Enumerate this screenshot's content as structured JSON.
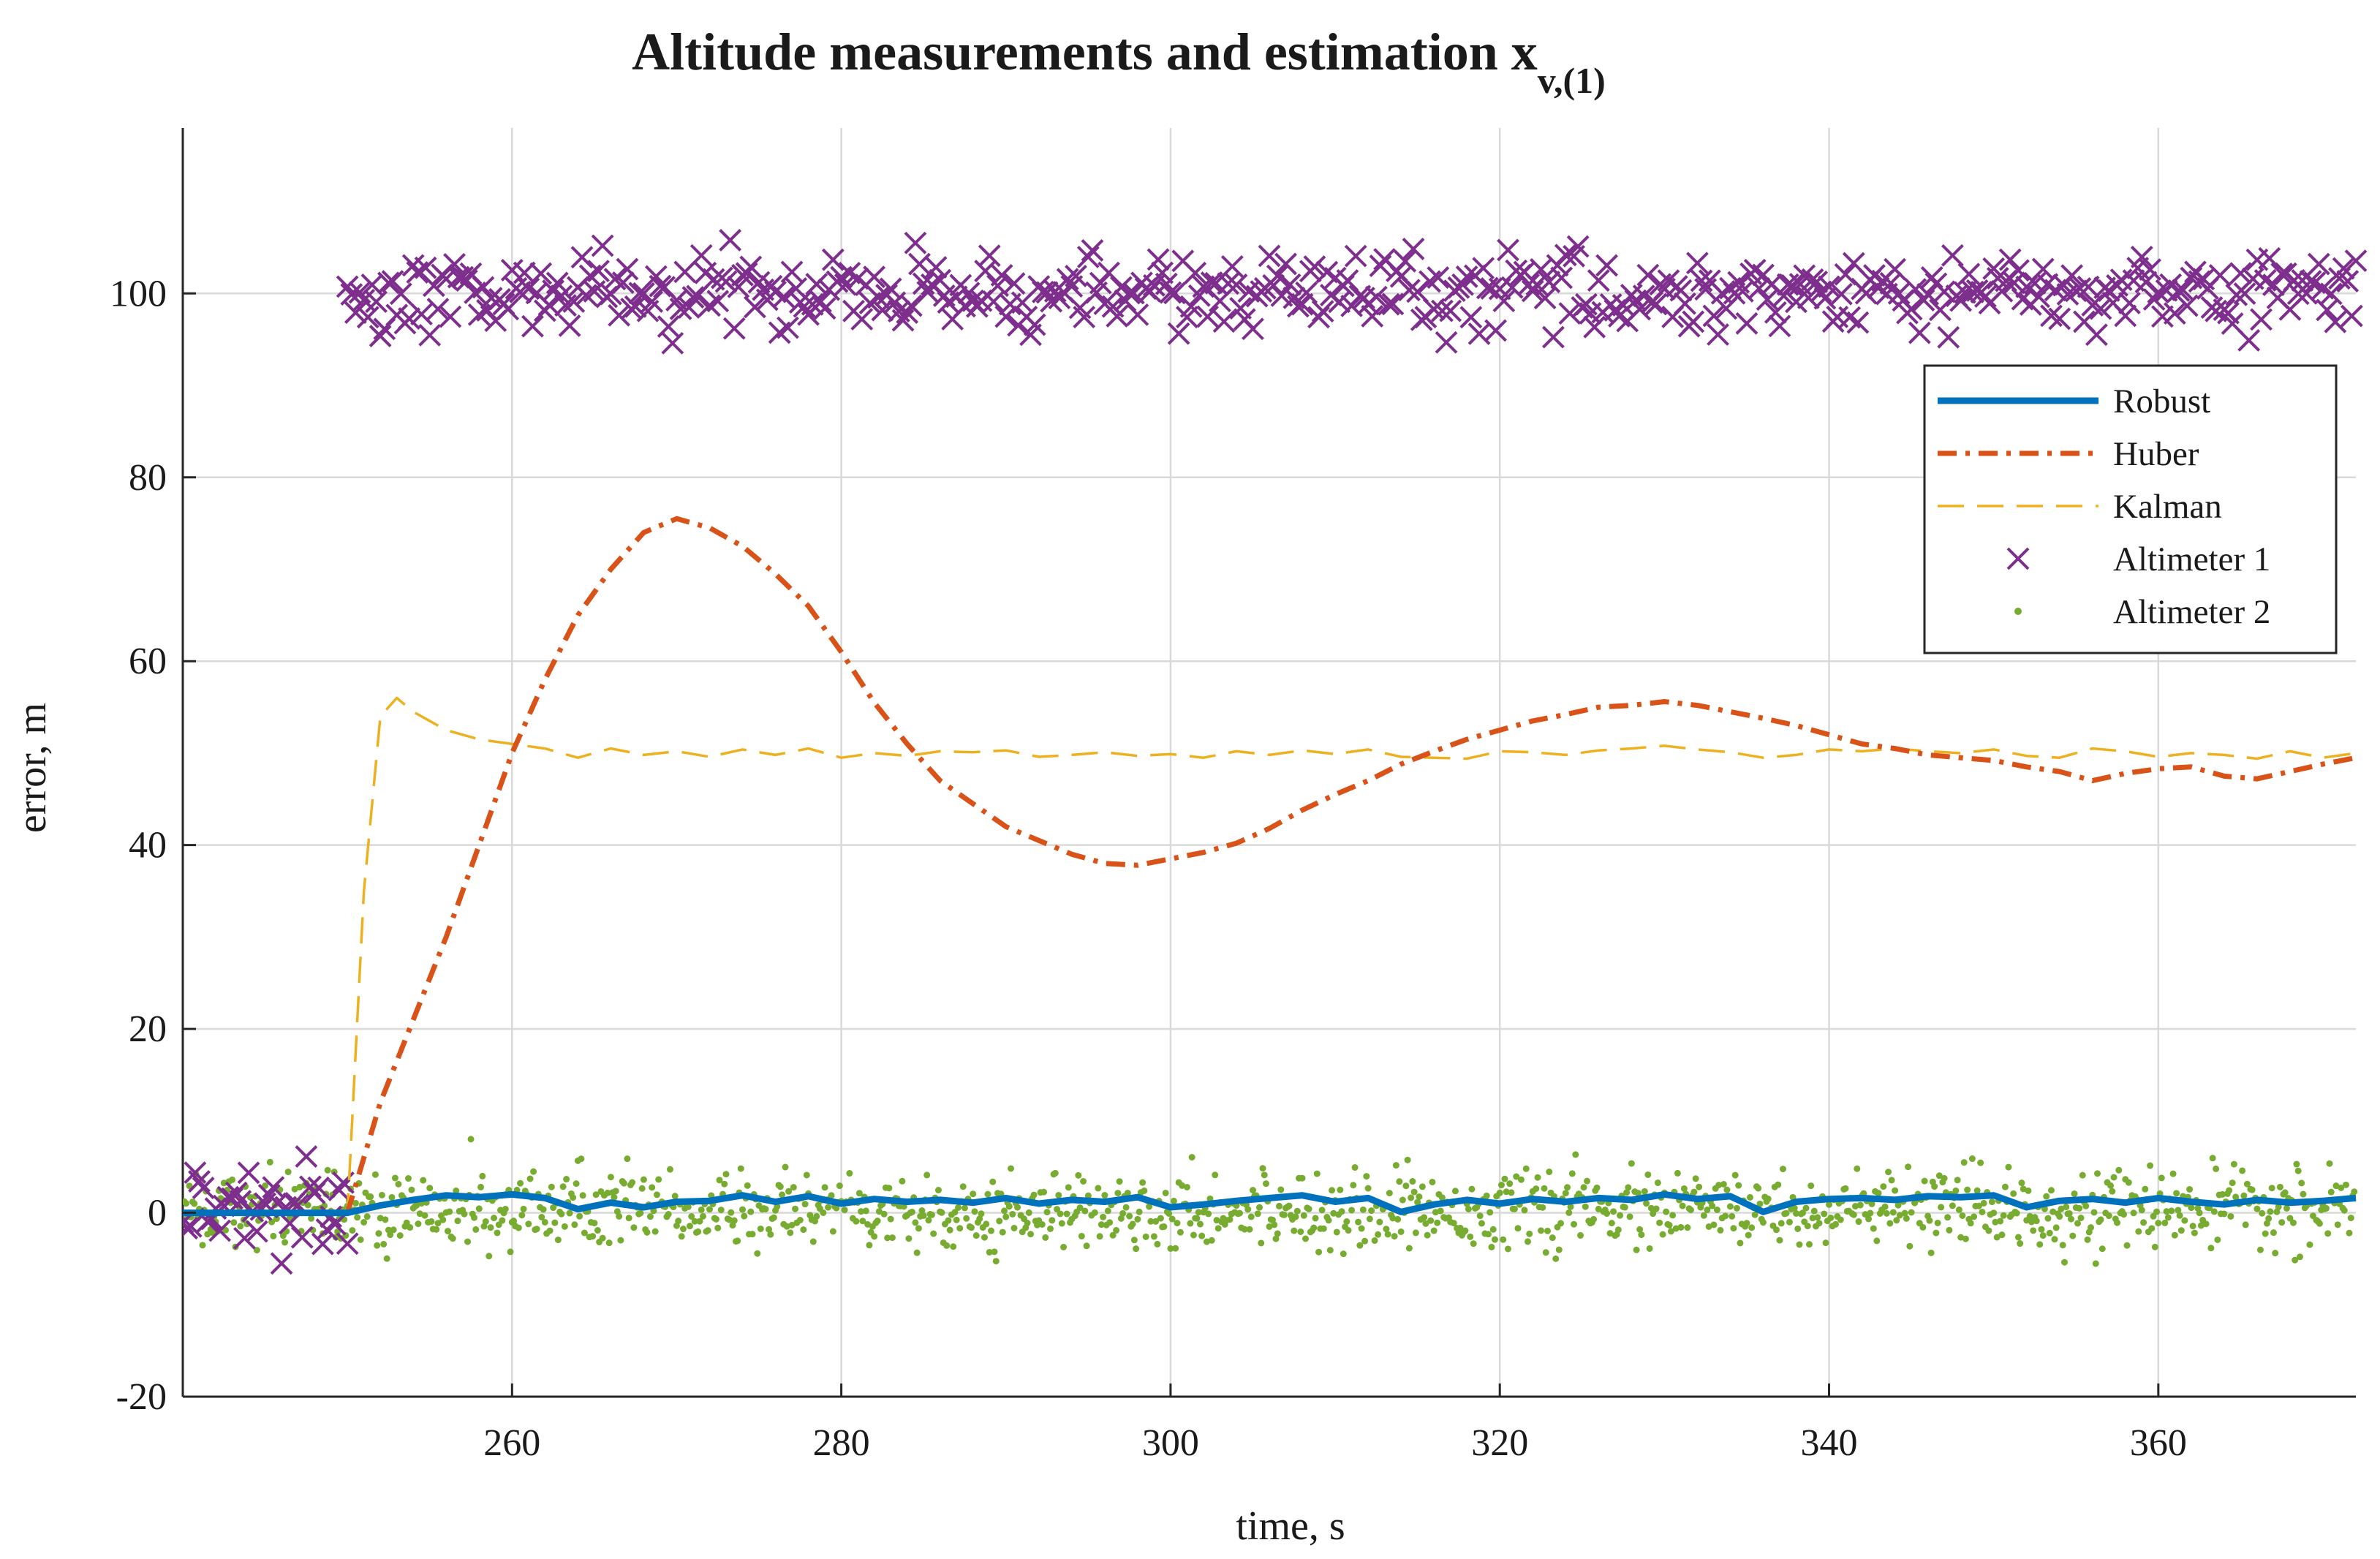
{
  "chart_data": {
    "type": "line",
    "title": "Altitude measurements and estimation x",
    "title_subscript": "v,(1)",
    "xlabel": "time, s",
    "ylabel": "error, m",
    "xlim": [
      240,
      372
    ],
    "ylim": [
      -20,
      118
    ],
    "xticks": [
      260,
      280,
      300,
      320,
      340,
      360
    ],
    "yticks": [
      -20,
      0,
      20,
      40,
      60,
      80,
      100
    ],
    "grid": true,
    "legend_position": "top-right",
    "series": [
      {
        "name": "Robust",
        "color": "#0072BD",
        "style": "solid",
        "x": [
          240,
          244,
          248,
          250,
          252,
          254,
          256,
          258,
          260,
          262,
          264,
          266,
          268,
          270,
          272,
          274,
          276,
          278,
          280,
          282,
          284,
          286,
          288,
          290,
          292,
          294,
          296,
          298,
          300,
          302,
          304,
          306,
          308,
          310,
          312,
          314,
          316,
          318,
          320,
          322,
          324,
          326,
          328,
          330,
          332,
          334,
          336,
          338,
          340,
          342,
          344,
          346,
          348,
          350,
          352,
          354,
          356,
          358,
          360,
          362,
          364,
          366,
          368,
          370,
          372
        ],
        "values": [
          0,
          0,
          0,
          0,
          0.8,
          1.4,
          1.9,
          1.7,
          2.0,
          1.6,
          0.4,
          1.1,
          0.6,
          1.2,
          1.3,
          1.9,
          1.2,
          1.8,
          1.0,
          1.5,
          1.2,
          1.4,
          1.1,
          1.6,
          1.0,
          1.4,
          1.2,
          1.7,
          0.6,
          0.9,
          1.3,
          1.6,
          1.9,
          1.2,
          1.6,
          0.1,
          0.9,
          1.4,
          1.0,
          1.5,
          1.2,
          1.6,
          1.4,
          2.0,
          1.5,
          1.8,
          0.1,
          1.2,
          1.5,
          1.6,
          1.4,
          1.8,
          1.7,
          1.9,
          0.6,
          1.3,
          1.5,
          1.1,
          1.6,
          1.2,
          0.9,
          1.4,
          1.1,
          1.3,
          1.6
        ]
      },
      {
        "name": "Huber",
        "color": "#D95319",
        "style": "dashdot",
        "x": [
          240,
          244,
          248,
          250,
          252,
          254,
          256,
          258,
          260,
          262,
          264,
          266,
          268,
          270,
          272,
          274,
          276,
          278,
          280,
          282,
          284,
          286,
          288,
          290,
          292,
          294,
          296,
          298,
          300,
          302,
          304,
          306,
          308,
          310,
          312,
          314,
          316,
          318,
          320,
          322,
          324,
          326,
          328,
          330,
          332,
          334,
          336,
          338,
          340,
          342,
          344,
          346,
          348,
          350,
          352,
          354,
          356,
          358,
          360,
          362,
          364,
          366,
          368,
          370,
          372
        ],
        "values": [
          0,
          0,
          0,
          0,
          12,
          21,
          30,
          40,
          50,
          58,
          65,
          70,
          74,
          75.5,
          74.5,
          72.5,
          69.5,
          66,
          61,
          55.5,
          51,
          47,
          44.5,
          42,
          40.5,
          39,
          38,
          37.8,
          38.5,
          39.2,
          40.2,
          41.8,
          43.8,
          45.5,
          47,
          48.8,
          50.2,
          51.5,
          52.5,
          53.5,
          54.2,
          55,
          55.2,
          55.6,
          55.2,
          54.5,
          53.8,
          53,
          52,
          51,
          50.5,
          49.8,
          49.5,
          49.2,
          48.5,
          48,
          47,
          47.8,
          48.3,
          48.5,
          47.5,
          47.2,
          48,
          48.8,
          49.5
        ]
      },
      {
        "name": "Kalman",
        "color": "#EDB120",
        "style": "dashed",
        "x": [
          240,
          244,
          248,
          250,
          251,
          252,
          253,
          254,
          256,
          258,
          260,
          262,
          264,
          266,
          268,
          270,
          272,
          274,
          276,
          278,
          280,
          282,
          284,
          286,
          288,
          290,
          292,
          294,
          296,
          298,
          300,
          302,
          304,
          306,
          308,
          310,
          312,
          314,
          316,
          318,
          320,
          322,
          324,
          326,
          328,
          330,
          332,
          334,
          336,
          338,
          340,
          342,
          344,
          346,
          348,
          350,
          352,
          354,
          356,
          358,
          360,
          362,
          364,
          366,
          368,
          370,
          372
        ],
        "values": [
          0,
          0,
          0,
          0,
          35,
          54,
          56,
          54.5,
          52.5,
          51.5,
          51,
          50.5,
          49.5,
          50.5,
          49.8,
          50.2,
          49.6,
          50.4,
          49.8,
          50.5,
          49.5,
          50,
          49.7,
          50.2,
          50.1,
          50.3,
          49.6,
          49.8,
          50.1,
          49.7,
          49.9,
          49.5,
          50.2,
          49.8,
          50.3,
          49.9,
          50.4,
          49.6,
          49.5,
          49.4,
          50.2,
          50.1,
          49.8,
          50.3,
          50.5,
          50.8,
          50.4,
          50.1,
          49.5,
          49.8,
          50.4,
          50.2,
          50.5,
          50.2,
          50,
          50.4,
          49.7,
          49.5,
          50.5,
          50.2,
          49.6,
          50,
          49.8,
          49.4,
          50.2,
          49.5,
          50
        ]
      },
      {
        "name": "Altimeter 1",
        "color": "#7E2F8E",
        "style": "markers-x",
        "groups": [
          {
            "x_from": 240,
            "x_to": 250,
            "mean": 0,
            "std": 2.2
          },
          {
            "x_from": 250,
            "x_to": 372,
            "mean": 100,
            "std": 2.1
          }
        ],
        "sample_step": 0.25
      },
      {
        "name": "Altimeter 2",
        "color": "#77AC30",
        "style": "markers-dot",
        "groups": [
          {
            "x_from": 240,
            "x_to": 372,
            "mean": 0.3,
            "std": 2.0
          }
        ],
        "sample_step": 0.1
      }
    ]
  }
}
